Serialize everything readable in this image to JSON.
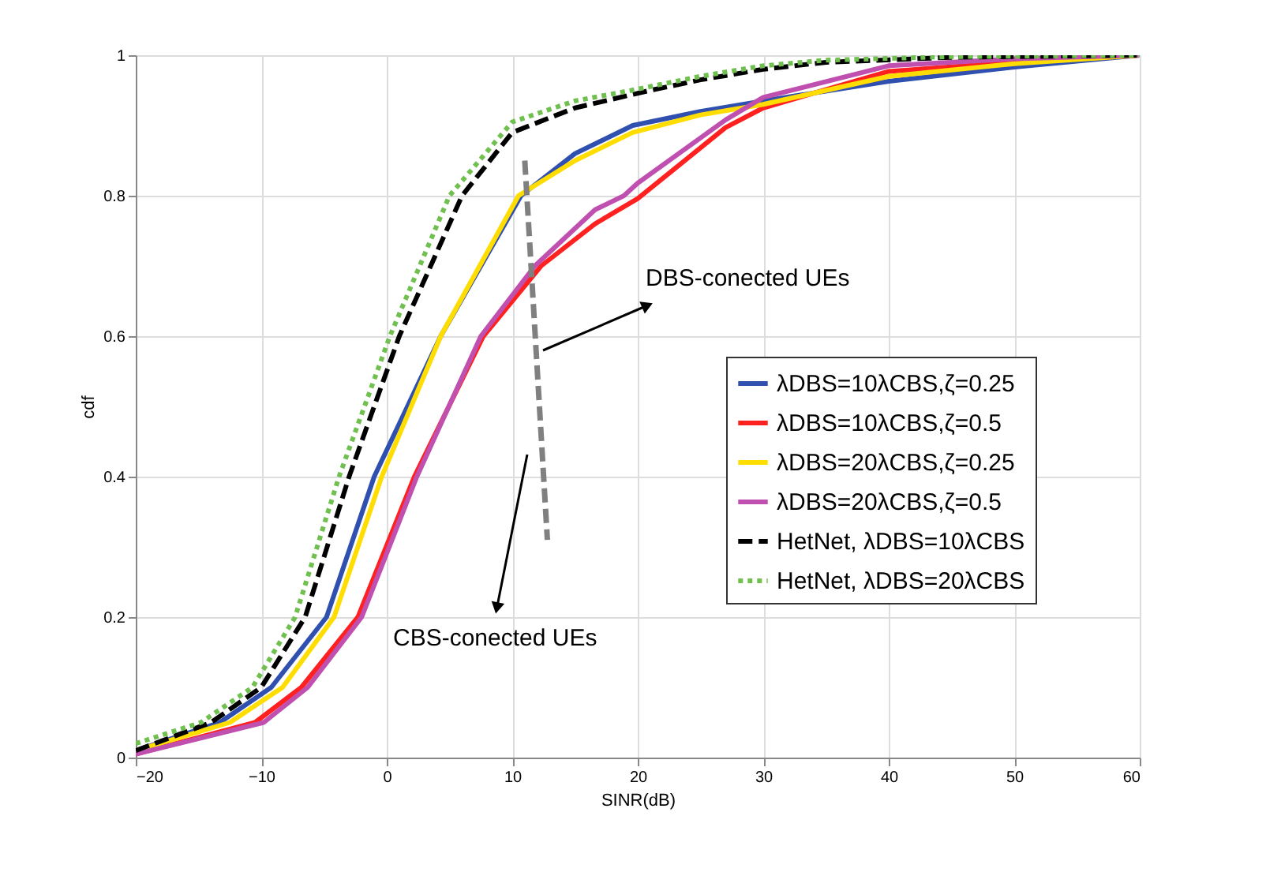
{
  "chart_data": {
    "type": "line",
    "xlabel": "SINR(dB)",
    "ylabel": "cdf",
    "xlim": [
      -20,
      60
    ],
    "xticks": [
      -20,
      -10,
      0,
      10,
      20,
      30,
      40,
      50,
      60
    ],
    "ylim": [
      0,
      1
    ],
    "yticks": [
      0,
      0.2,
      0.4,
      0.6,
      0.8,
      1
    ],
    "grid": true,
    "legend": "right",
    "annotations": [
      "DBS-conected UEs",
      "CBS-conected UEs"
    ],
    "series": [
      {
        "name": "λDBS=10λCBS,ζ=0.25",
        "color": "#3050b0",
        "line_style": "solid",
        "x": [
          -20,
          -13.3,
          -9.2,
          -4.8,
          -1,
          4.3,
          10.7,
          15,
          19.6,
          25,
          30,
          40,
          50,
          60
        ],
        "values": [
          0.01,
          0.05,
          0.1,
          0.2,
          0.4,
          0.6,
          0.8,
          0.86,
          0.9,
          0.92,
          0.935,
          0.963,
          0.983,
          1
        ]
      },
      {
        "name": "λDBS=10λCBS,ζ=0.5",
        "color": "#ff2020",
        "line_style": "solid",
        "x": [
          -20,
          -10.5,
          -6.8,
          -2.3,
          2.2,
          7.7,
          12.3,
          16.6,
          20,
          27,
          30,
          40,
          50,
          60
        ],
        "values": [
          0.005,
          0.05,
          0.1,
          0.2,
          0.4,
          0.6,
          0.7,
          0.76,
          0.796,
          0.897,
          0.925,
          0.977,
          0.99,
          1
        ]
      },
      {
        "name": "λDBS=20λCBS,ζ=0.25",
        "color": "#ffdd00",
        "line_style": "solid",
        "x": [
          -20,
          -12.5,
          -8.3,
          -4.2,
          -0.4,
          4.3,
          10.5,
          15,
          19.6,
          25,
          30,
          40,
          50,
          60
        ],
        "values": [
          0.01,
          0.05,
          0.1,
          0.2,
          0.4,
          0.6,
          0.8,
          0.85,
          0.89,
          0.915,
          0.93,
          0.97,
          0.988,
          1
        ]
      },
      {
        "name": "λDBS=20λCBS,ζ=0.5",
        "color": "#c050b0",
        "line_style": "solid",
        "x": [
          -20,
          -9.8,
          -6.3,
          -2,
          2.4,
          7.5,
          11.8,
          16.6,
          18.9,
          20,
          27,
          30,
          40,
          50,
          60
        ],
        "values": [
          0.005,
          0.05,
          0.1,
          0.2,
          0.4,
          0.6,
          0.7,
          0.78,
          0.8,
          0.818,
          0.908,
          0.94,
          0.985,
          0.995,
          1
        ]
      },
      {
        "name": "HetNet, λDBS=10λCBS",
        "color": "#000000",
        "line_style": "dashed",
        "x": [
          -20,
          -14,
          -10,
          -6.5,
          -3,
          1,
          6,
          10,
          15,
          21,
          25,
          30,
          35,
          45,
          60
        ],
        "values": [
          0.01,
          0.05,
          0.1,
          0.2,
          0.4,
          0.6,
          0.8,
          0.89,
          0.925,
          0.95,
          0.965,
          0.98,
          0.99,
          0.997,
          1
        ]
      },
      {
        "name": "HetNet, λDBS=20λCBS",
        "color": "#70c050",
        "line_style": "dotted",
        "x": [
          -20,
          -14.8,
          -10.7,
          -7.3,
          -3.8,
          0.25,
          5,
          10,
          15,
          19.5,
          25,
          30,
          35,
          45,
          60
        ],
        "values": [
          0.02,
          0.05,
          0.1,
          0.2,
          0.4,
          0.6,
          0.8,
          0.905,
          0.935,
          0.95,
          0.97,
          0.985,
          0.993,
          0.998,
          1
        ]
      },
      {
        "type": "line",
        "color": "#808080",
        "line_style": "dashed",
        "x": [
          11,
          12.8
        ],
        "values": [
          0.85,
          0.31
        ]
      }
    ]
  }
}
